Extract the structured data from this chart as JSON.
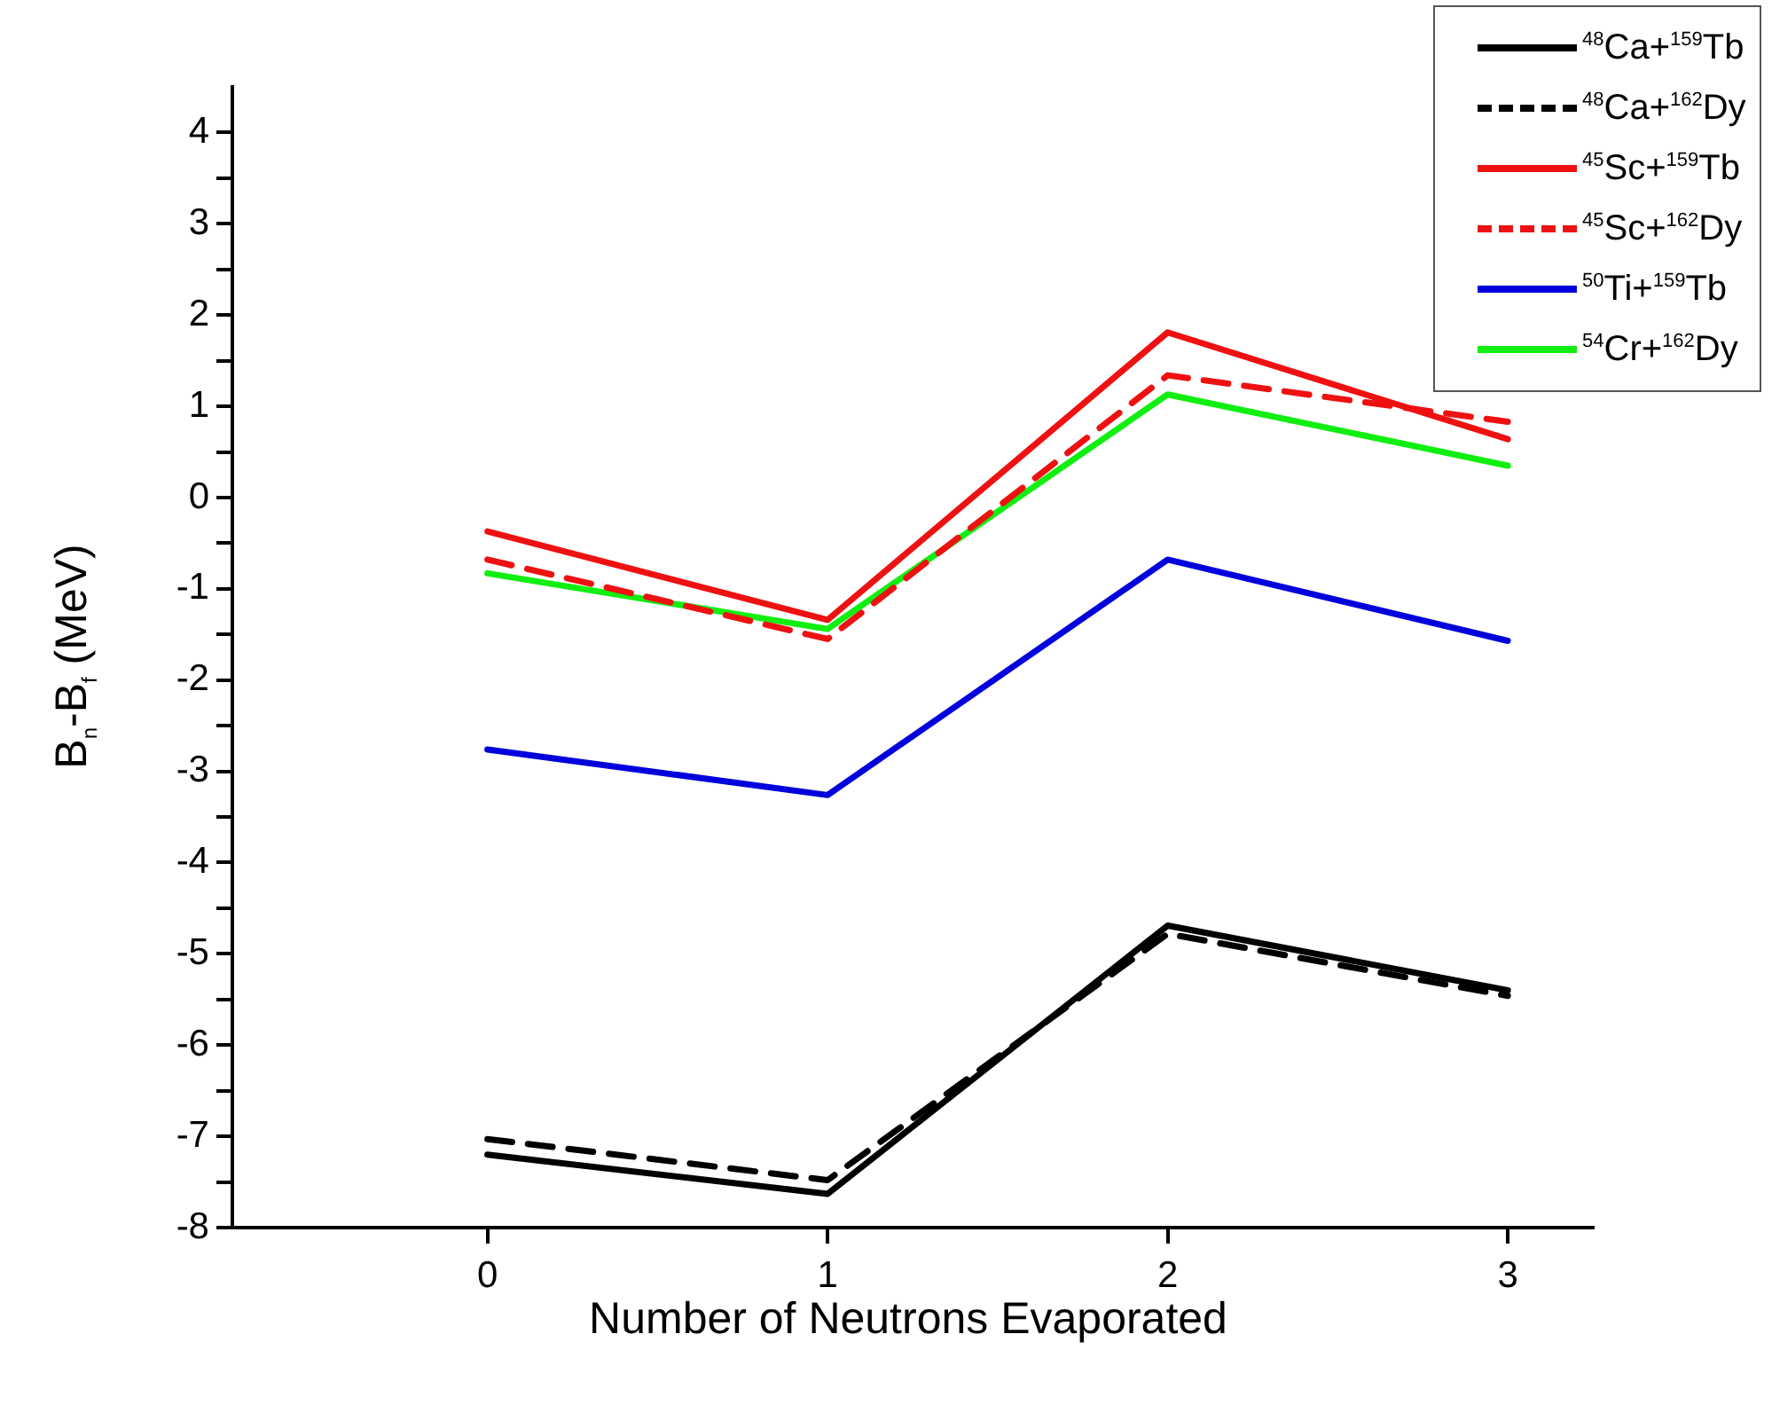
{
  "chart_data": {
    "type": "line",
    "xlabel": "Number of Neutrons Evaporated",
    "ylabel": "B$_{n}$-B$_{f}$ (MeV)",
    "x": [
      0,
      1,
      2,
      3
    ],
    "xlim": [
      -0.75,
      3.25
    ],
    "xticks": [
      0,
      1,
      2,
      3
    ],
    "ylim": [
      -8,
      4.5
    ],
    "yticks": [
      -8,
      {
        "value": -7.5,
        "label": null
      },
      -7,
      {
        "value": -6.5,
        "label": null
      },
      -6,
      {
        "value": -5.5,
        "label": null
      },
      -5,
      {
        "value": -4.5,
        "label": null
      },
      -4,
      {
        "value": -3.5,
        "label": null
      },
      -3,
      {
        "value": -2.5,
        "label": null
      },
      -2,
      {
        "value": -1.5,
        "label": null
      },
      -1,
      {
        "value": -0.5,
        "label": null
      },
      0,
      {
        "value": 0.5,
        "label": null
      },
      1,
      {
        "value": 1.5,
        "label": null
      },
      2,
      {
        "value": 2.5,
        "label": null
      },
      3,
      {
        "value": 3.5,
        "label": null
      },
      4
    ],
    "grid": false,
    "legend": "top right",
    "marker": "none",
    "series": [
      {
        "name": "$^{48}$Ca+$^{159}$Tb",
        "color": "#000000",
        "line_style": "solid",
        "values": [
          -7.2,
          -7.63,
          -4.69,
          -5.4
        ]
      },
      {
        "name": "$^{48}$Ca+$^{162}$Dy",
        "color": "#000000",
        "line_style": "dashed",
        "values": [
          -7.03,
          -7.48,
          -4.78,
          -5.46
        ]
      },
      {
        "name": "$^{45}$Sc+$^{159}$Tb",
        "color": "#ee1111",
        "line_style": "solid",
        "values": [
          -0.37,
          -1.34,
          1.81,
          0.64
        ]
      },
      {
        "name": "$^{45}$Sc+$^{162}$Dy",
        "color": "#ee1111",
        "line_style": "dashed",
        "values": [
          -0.68,
          -1.55,
          1.34,
          0.83
        ]
      },
      {
        "name": "$^{50}$Ti+$^{159}$Tb",
        "color": "#0000dd",
        "line_style": "solid",
        "values": [
          -2.76,
          -3.26,
          -0.68,
          -1.57
        ]
      },
      {
        "name": "$^{54}$Cr+$^{162}$Dy",
        "color": "#11ee11",
        "line_style": "solid",
        "values": [
          -0.83,
          -1.44,
          1.13,
          0.35
        ]
      }
    ]
  }
}
